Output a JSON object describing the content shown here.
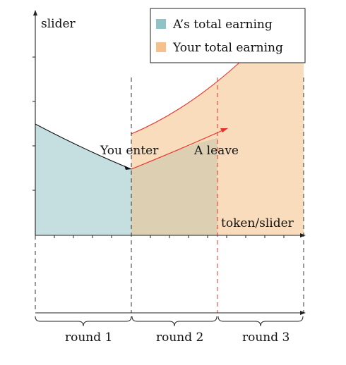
{
  "labels": {
    "y_axis": "slider",
    "x_axis": "token/slider",
    "you_enter": "You enter",
    "a_leave": "A leave"
  },
  "legend": {
    "items": [
      {
        "label": "A’s total earning",
        "color": "#8fc4c6"
      },
      {
        "label": "Your total earning",
        "color": "#f5c08c"
      }
    ]
  },
  "rounds": [
    "round 1",
    "round 2",
    "round 3"
  ],
  "colors": {
    "a_region": "#c5dfe1",
    "your_region": "#f8dcbc",
    "overlap_region": "#dccfb2",
    "curve_red": "#e8302a",
    "axis": "#222222"
  }
}
